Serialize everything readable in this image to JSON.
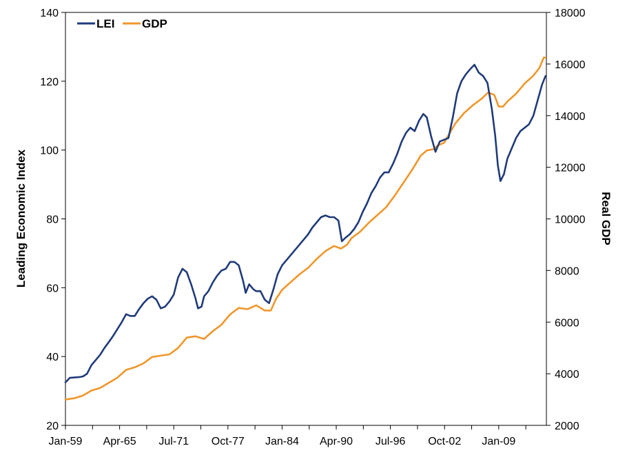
{
  "chart_data": {
    "type": "line",
    "title": "",
    "xlabel": "",
    "ylabel": "Leading Economic Index",
    "y2label": "Real GDP",
    "x_tick_labels": [
      "Jan-59",
      "Apr-65",
      "Jul-71",
      "Oct-77",
      "Jan-84",
      "Apr-90",
      "Jul-96",
      "Oct-02",
      "Jan-09"
    ],
    "x_range_years": [
      1959.0,
      2014.5
    ],
    "ylim": [
      20,
      140
    ],
    "y_ticks": [
      20,
      40,
      60,
      80,
      100,
      120,
      140
    ],
    "y2lim": [
      2000,
      18000
    ],
    "y2_ticks": [
      2000,
      4000,
      6000,
      8000,
      10000,
      12000,
      14000,
      16000,
      18000
    ],
    "grid": false,
    "legend_position": "top-left",
    "series": [
      {
        "name": "LEI",
        "axis": "left",
        "color": "#1f3a7a",
        "points": [
          [
            1959.0,
            32.5
          ],
          [
            1959.5,
            33.8
          ],
          [
            1960.5,
            34.0
          ],
          [
            1961.0,
            34.2
          ],
          [
            1961.5,
            35.0
          ],
          [
            1962.0,
            37.5
          ],
          [
            1962.5,
            39.0
          ],
          [
            1963.0,
            40.5
          ],
          [
            1963.5,
            42.5
          ],
          [
            1964.0,
            44.2
          ],
          [
            1964.5,
            46.0
          ],
          [
            1965.0,
            48.0
          ],
          [
            1965.5,
            50.0
          ],
          [
            1966.0,
            52.3
          ],
          [
            1966.5,
            51.8
          ],
          [
            1967.0,
            51.8
          ],
          [
            1967.5,
            53.8
          ],
          [
            1968.0,
            55.5
          ],
          [
            1968.5,
            56.8
          ],
          [
            1969.0,
            57.5
          ],
          [
            1969.5,
            56.5
          ],
          [
            1970.0,
            54.0
          ],
          [
            1970.5,
            54.5
          ],
          [
            1971.0,
            56.0
          ],
          [
            1971.5,
            58.0
          ],
          [
            1972.0,
            63.0
          ],
          [
            1972.5,
            65.5
          ],
          [
            1973.0,
            64.5
          ],
          [
            1973.5,
            61.0
          ],
          [
            1974.0,
            57.0
          ],
          [
            1974.3,
            54.0
          ],
          [
            1974.7,
            54.5
          ],
          [
            1975.0,
            57.5
          ],
          [
            1975.5,
            59.0
          ],
          [
            1976.0,
            61.5
          ],
          [
            1976.5,
            63.5
          ],
          [
            1977.0,
            65.0
          ],
          [
            1977.5,
            65.5
          ],
          [
            1978.0,
            67.5
          ],
          [
            1978.5,
            67.5
          ],
          [
            1979.0,
            66.5
          ],
          [
            1979.5,
            62.0
          ],
          [
            1979.8,
            58.5
          ],
          [
            1980.2,
            61.0
          ],
          [
            1980.7,
            59.5
          ],
          [
            1981.0,
            59.0
          ],
          [
            1981.5,
            59.0
          ],
          [
            1982.0,
            56.5
          ],
          [
            1982.5,
            55.5
          ],
          [
            1983.0,
            59.5
          ],
          [
            1983.5,
            64.0
          ],
          [
            1984.0,
            66.5
          ],
          [
            1984.5,
            68.0
          ],
          [
            1985.0,
            69.5
          ],
          [
            1985.5,
            71.0
          ],
          [
            1986.0,
            72.5
          ],
          [
            1986.5,
            74.0
          ],
          [
            1987.0,
            75.5
          ],
          [
            1987.5,
            77.5
          ],
          [
            1988.0,
            79.0
          ],
          [
            1988.5,
            80.5
          ],
          [
            1989.0,
            81.0
          ],
          [
            1989.5,
            80.5
          ],
          [
            1990.0,
            80.5
          ],
          [
            1990.5,
            79.5
          ],
          [
            1990.9,
            73.5
          ],
          [
            1991.3,
            74.5
          ],
          [
            1991.8,
            75.5
          ],
          [
            1992.3,
            77.0
          ],
          [
            1992.8,
            79.0
          ],
          [
            1993.3,
            82.0
          ],
          [
            1993.8,
            84.5
          ],
          [
            1994.3,
            87.5
          ],
          [
            1994.8,
            89.5
          ],
          [
            1995.3,
            92.0
          ],
          [
            1995.8,
            93.5
          ],
          [
            1996.3,
            93.5
          ],
          [
            1996.8,
            96.0
          ],
          [
            1997.3,
            99.0
          ],
          [
            1997.8,
            102.5
          ],
          [
            1998.3,
            105.0
          ],
          [
            1998.8,
            106.5
          ],
          [
            1999.3,
            105.5
          ],
          [
            1999.8,
            108.5
          ],
          [
            2000.3,
            110.5
          ],
          [
            2000.7,
            109.5
          ],
          [
            2001.2,
            104.0
          ],
          [
            2001.7,
            99.5
          ],
          [
            2002.2,
            102.5
          ],
          [
            2002.7,
            103.0
          ],
          [
            2003.2,
            103.5
          ],
          [
            2003.7,
            109.5
          ],
          [
            2004.2,
            116.5
          ],
          [
            2004.7,
            120.0
          ],
          [
            2005.2,
            122.0
          ],
          [
            2005.7,
            123.5
          ],
          [
            2006.2,
            124.8
          ],
          [
            2006.7,
            122.5
          ],
          [
            2007.2,
            121.5
          ],
          [
            2007.7,
            119.5
          ],
          [
            2008.2,
            112.0
          ],
          [
            2008.6,
            104.0
          ],
          [
            2008.9,
            95.5
          ],
          [
            2009.2,
            91.0
          ],
          [
            2009.6,
            93.0
          ],
          [
            2010.0,
            97.5
          ],
          [
            2010.5,
            100.5
          ],
          [
            2011.0,
            103.5
          ],
          [
            2011.5,
            105.5
          ],
          [
            2012.0,
            106.5
          ],
          [
            2012.5,
            107.5
          ],
          [
            2013.0,
            110.0
          ],
          [
            2013.5,
            114.5
          ],
          [
            2014.0,
            119.0
          ],
          [
            2014.4,
            121.5
          ]
        ]
      },
      {
        "name": "GDP",
        "axis": "right",
        "color": "#f0962a",
        "points": [
          [
            1959.0,
            3000
          ],
          [
            1960.0,
            3050
          ],
          [
            1961.0,
            3150
          ],
          [
            1962.0,
            3350
          ],
          [
            1963.0,
            3450
          ],
          [
            1964.0,
            3650
          ],
          [
            1965.0,
            3850
          ],
          [
            1966.0,
            4150
          ],
          [
            1967.0,
            4250
          ],
          [
            1968.0,
            4400
          ],
          [
            1969.0,
            4650
          ],
          [
            1970.0,
            4700
          ],
          [
            1971.0,
            4750
          ],
          [
            1972.0,
            5000
          ],
          [
            1973.0,
            5400
          ],
          [
            1974.0,
            5450
          ],
          [
            1975.0,
            5350
          ],
          [
            1976.0,
            5650
          ],
          [
            1977.0,
            5900
          ],
          [
            1978.0,
            6300
          ],
          [
            1979.0,
            6550
          ],
          [
            1980.0,
            6500
          ],
          [
            1981.0,
            6650
          ],
          [
            1982.0,
            6450
          ],
          [
            1982.7,
            6450
          ],
          [
            1983.3,
            6900
          ],
          [
            1984.0,
            7250
          ],
          [
            1985.0,
            7550
          ],
          [
            1986.0,
            7850
          ],
          [
            1987.0,
            8100
          ],
          [
            1988.0,
            8450
          ],
          [
            1989.0,
            8750
          ],
          [
            1990.0,
            8950
          ],
          [
            1990.8,
            8850
          ],
          [
            1991.5,
            9000
          ],
          [
            1992.0,
            9250
          ],
          [
            1993.0,
            9500
          ],
          [
            1994.0,
            9850
          ],
          [
            1995.0,
            10150
          ],
          [
            1996.0,
            10450
          ],
          [
            1997.0,
            10900
          ],
          [
            1998.0,
            11400
          ],
          [
            1999.0,
            11900
          ],
          [
            2000.0,
            12450
          ],
          [
            2000.7,
            12650
          ],
          [
            2001.5,
            12700
          ],
          [
            2002.0,
            12850
          ],
          [
            2002.7,
            12950
          ],
          [
            2003.3,
            13300
          ],
          [
            2004.0,
            13700
          ],
          [
            2005.0,
            14100
          ],
          [
            2006.0,
            14400
          ],
          [
            2007.0,
            14650
          ],
          [
            2007.8,
            14900
          ],
          [
            2008.5,
            14800
          ],
          [
            2009.0,
            14350
          ],
          [
            2009.5,
            14350
          ],
          [
            2010.0,
            14550
          ],
          [
            2011.0,
            14850
          ],
          [
            2012.0,
            15250
          ],
          [
            2013.0,
            15550
          ],
          [
            2013.7,
            15850
          ],
          [
            2014.2,
            16250
          ],
          [
            2014.4,
            16250
          ]
        ]
      }
    ]
  }
}
